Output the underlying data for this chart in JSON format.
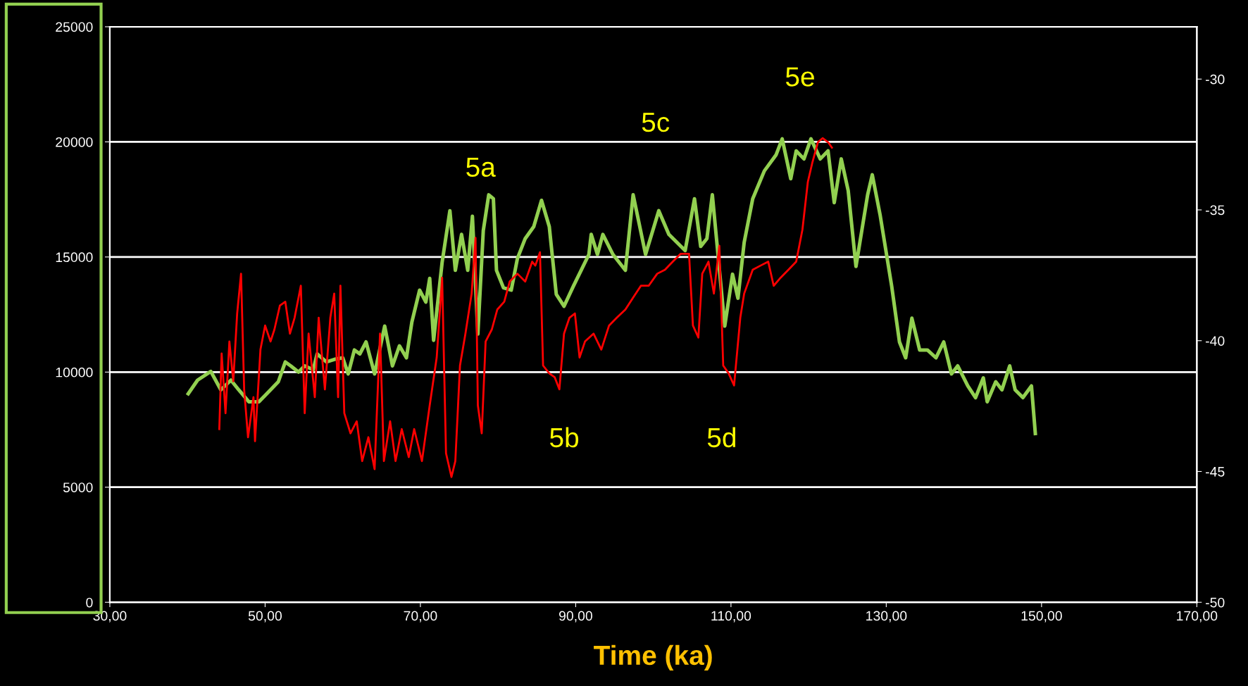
{
  "chart_data": {
    "type": "line",
    "xlabel": "Time (ka)",
    "xlim": [
      30,
      170
    ],
    "xticks": [
      {
        "value": 30,
        "label": "30,00"
      },
      {
        "value": 50,
        "label": "50,00"
      },
      {
        "value": 70,
        "label": "70,00"
      },
      {
        "value": 90,
        "label": "90,00"
      },
      {
        "value": 110,
        "label": "110,00"
      },
      {
        "value": 130,
        "label": "130,00"
      },
      {
        "value": 150,
        "label": "150,00"
      },
      {
        "value": 170,
        "label": "170,00"
      }
    ],
    "ylim": [
      0,
      25000
    ],
    "yticks": [
      0,
      5000,
      10000,
      15000,
      20000,
      25000
    ],
    "y2lim": [
      -50,
      -28
    ],
    "y2ticks": [
      -50,
      -45,
      -40,
      -35,
      -30
    ],
    "grid": "y",
    "marker": "none",
    "line_style": "solid",
    "series": [
      {
        "color": "#92d050",
        "x": [
          40.1,
          41.3,
          43.0,
          44.3,
          45.6,
          46.6,
          47.9,
          49.2,
          50.7,
          51.7,
          52.6,
          53.3,
          54.3,
          55.1,
          56.2,
          56.7,
          57.9,
          58.9,
          60.0,
          60.7,
          61.5,
          62.2,
          63.0,
          64.1,
          65.4,
          66.4,
          67.3,
          68.2,
          68.9,
          69.9,
          70.7,
          71.2,
          71.7,
          72.8,
          73.8,
          74.5,
          75.3,
          76.1,
          76.7,
          77.4,
          78.1,
          78.8,
          79.4,
          79.8,
          80.7,
          81.7,
          82.5,
          83.5,
          84.6,
          85.6,
          86.6,
          87.5,
          88.5,
          89.7,
          90.7,
          91.7,
          92.0,
          92.8,
          93.5,
          94.8,
          96.4,
          97.4,
          99.0,
          100.7,
          102.0,
          104.1,
          105.3,
          106.1,
          106.9,
          107.6,
          109.2,
          110.2,
          110.9,
          111.7,
          112.8,
          114.3,
          115.8,
          116.6,
          117.7,
          118.4,
          119.4,
          120.3,
          121.5,
          122.5,
          123.3,
          124.2,
          125.1,
          126.1,
          127.6,
          128.2,
          129.2,
          130.7,
          131.7,
          132.5,
          133.3,
          134.3,
          135.3,
          136.4,
          137.4,
          138.4,
          139.2,
          140.5,
          141.5,
          142.5,
          143.0,
          144.1,
          144.9,
          145.9,
          146.6,
          147.6,
          148.7,
          149.2
        ],
        "values": [
          9060,
          9650,
          10030,
          9230,
          9650,
          9230,
          8710,
          8710,
          9230,
          9580,
          10440,
          10270,
          10000,
          10270,
          10100,
          10790,
          10440,
          10550,
          10620,
          9920,
          10960,
          10790,
          11310,
          9920,
          12000,
          10270,
          11140,
          10620,
          12170,
          13560,
          13040,
          14070,
          11380,
          14770,
          17010,
          14420,
          15980,
          14420,
          16770,
          11650,
          16150,
          17700,
          17530,
          14420,
          13660,
          13560,
          14940,
          15800,
          16320,
          17460,
          16320,
          13380,
          12860,
          13730,
          14420,
          15110,
          15980,
          15110,
          15980,
          15110,
          14420,
          17700,
          15110,
          17010,
          15980,
          15280,
          17530,
          15460,
          15800,
          17700,
          12000,
          14250,
          13210,
          15630,
          17530,
          18740,
          19430,
          20130,
          18400,
          19610,
          19260,
          20130,
          19260,
          19610,
          17360,
          19260,
          17880,
          14590,
          17700,
          18570,
          16840,
          13730,
          11310,
          10620,
          12340,
          10960,
          10960,
          10620,
          11310,
          9920,
          10270,
          9400,
          8890,
          9750,
          8710,
          9580,
          9230,
          10270,
          9230,
          8890,
          9400,
          7330
        ]
      },
      {
        "color": "#ff0000",
        "axis": "y2",
        "x": [
          44.1,
          44.4,
          44.9,
          45.4,
          45.9,
          46.4,
          46.9,
          47.3,
          47.8,
          48.5,
          48.7,
          49.4,
          50.0,
          50.7,
          51.2,
          51.9,
          52.6,
          53.2,
          53.8,
          54.6,
          55.1,
          55.6,
          56.4,
          56.9,
          57.7,
          58.4,
          58.9,
          59.4,
          59.7,
          60.2,
          61.0,
          61.8,
          62.5,
          63.3,
          64.1,
          64.8,
          65.3,
          66.1,
          66.8,
          67.6,
          68.5,
          69.2,
          70.2,
          71.2,
          72.1,
          72.8,
          73.3,
          74.0,
          74.5,
          75.1,
          75.8,
          76.6,
          77.1,
          77.4,
          77.9,
          78.4,
          79.2,
          79.9,
          80.8,
          81.5,
          82.5,
          83.5,
          84.4,
          84.8,
          85.4,
          85.8,
          86.6,
          87.3,
          87.9,
          88.5,
          89.2,
          89.9,
          90.5,
          91.2,
          92.3,
          93.3,
          94.3,
          95.3,
          96.4,
          97.4,
          98.4,
          99.4,
          100.5,
          101.5,
          102.5,
          103.5,
          104.6,
          105.1,
          105.8,
          106.3,
          107.1,
          107.8,
          108.5,
          109.0,
          109.7,
          110.4,
          111.2,
          111.7,
          112.8,
          113.8,
          114.8,
          115.5,
          116.4,
          117.4,
          118.4,
          119.2,
          119.9,
          120.5,
          121.2,
          121.8,
          122.5,
          123.0
        ],
        "values": [
          -43.38,
          -40.49,
          -42.77,
          -40.03,
          -41.55,
          -38.96,
          -37.44,
          -41.86,
          -43.69,
          -42.16,
          -43.84,
          -40.34,
          -39.42,
          -40.03,
          -39.57,
          -38.66,
          -38.51,
          -39.73,
          -39.12,
          -37.9,
          -42.77,
          -39.73,
          -42.16,
          -39.12,
          -41.86,
          -39.12,
          -38.2,
          -42.16,
          -37.9,
          -42.77,
          -43.54,
          -43.08,
          -44.6,
          -43.69,
          -44.91,
          -39.73,
          -44.6,
          -43.08,
          -44.6,
          -43.38,
          -44.45,
          -43.38,
          -44.6,
          -42.47,
          -40.64,
          -37.59,
          -44.3,
          -45.21,
          -44.6,
          -40.95,
          -39.73,
          -38.2,
          -36.07,
          -42.47,
          -43.54,
          -40.03,
          -39.57,
          -38.81,
          -38.51,
          -37.74,
          -37.44,
          -37.74,
          -36.98,
          -37.13,
          -36.62,
          -40.95,
          -41.25,
          -41.4,
          -41.86,
          -39.73,
          -39.12,
          -38.96,
          -40.64,
          -40.03,
          -39.73,
          -40.34,
          -39.42,
          -39.12,
          -38.81,
          -38.35,
          -37.9,
          -37.9,
          -37.44,
          -37.29,
          -36.98,
          -36.68,
          -36.68,
          -39.42,
          -39.88,
          -37.44,
          -36.98,
          -38.2,
          -36.37,
          -40.95,
          -41.25,
          -41.71,
          -39.12,
          -38.2,
          -37.29,
          -37.13,
          -36.98,
          -37.9,
          -37.59,
          -37.29,
          -36.98,
          -35.76,
          -33.93,
          -33.17,
          -32.41,
          -32.26,
          -32.41,
          -32.62
        ]
      }
    ],
    "annotations": [
      "5a",
      "5b",
      "5c",
      "5d",
      "5e"
    ]
  }
}
